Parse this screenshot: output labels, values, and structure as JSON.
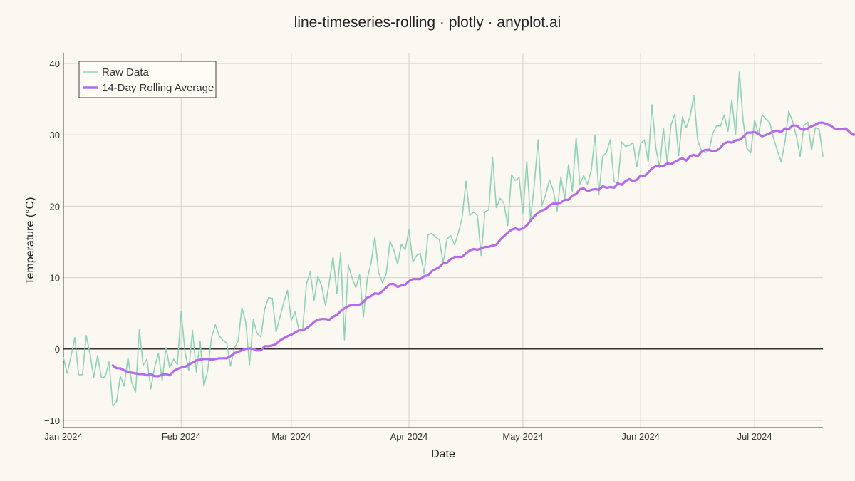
{
  "chart_data": {
    "type": "line",
    "title": "line-timeseries-rolling · plotly · anyplot.ai",
    "xlabel": "Date",
    "ylabel": "Temperature (°C)",
    "x_range": [
      "2024-01-01",
      "2024-07-19"
    ],
    "ylim": [
      -11,
      41.5
    ],
    "y_ticks": [
      -10,
      0,
      10,
      20,
      30,
      40
    ],
    "y_tick_labels": [
      "−10",
      "0",
      "10",
      "20",
      "30",
      "40"
    ],
    "x_ticks": [
      "2024-01-01",
      "2024-02-01",
      "2024-03-01",
      "2024-04-01",
      "2024-05-01",
      "2024-06-01",
      "2024-07-01"
    ],
    "x_tick_labels": [
      "Jan 2024",
      "Feb 2024",
      "Mar 2024",
      "Apr 2024",
      "May 2024",
      "Jun 2024",
      "Jul 2024"
    ],
    "grid": true,
    "zero_line": true,
    "legend_position": "top-left",
    "colors": {
      "background": "#FAF8F1",
      "raw": "#8ED2B5",
      "rolling": "#B46BEA",
      "grid": "#D3D1CB",
      "zero_line": "#333333",
      "axis": "#444444"
    },
    "series": [
      {
        "name": "Raw Data",
        "start_date": "2024-01-01",
        "values": [
          -1.2,
          -3.4,
          -1.0,
          1.6,
          -3.6,
          -3.6,
          1.9,
          -0.7,
          -4.0,
          -0.9,
          -4.0,
          -3.9,
          -1.8,
          -8.0,
          -7.4,
          -3.8,
          -5.2,
          -1.2,
          -4.7,
          -6.0,
          2.7,
          -2.3,
          -1.4,
          -5.6,
          -2.6,
          -0.6,
          -4.4,
          0.2,
          -2.6,
          -1.4,
          -2.2,
          5.3,
          -0.4,
          -3.0,
          2.6,
          -3.2,
          1.1,
          -5.2,
          -3.0,
          1.6,
          3.4,
          1.9,
          1.2,
          0.9,
          -2.4,
          0.1,
          1.1,
          5.8,
          3.8,
          -2.2,
          4.1,
          2.2,
          1.7,
          5.6,
          7.2,
          7.1,
          2.4,
          4.4,
          6.5,
          8.2,
          4.0,
          5.2,
          2.7,
          2.7,
          9.1,
          10.8,
          6.8,
          10.2,
          8.8,
          6.1,
          9.3,
          12.9,
          7.8,
          13.5,
          1.3,
          11.8,
          10.0,
          8.6,
          10.4,
          4.5,
          9.8,
          12.0,
          15.7,
          10.7,
          9.3,
          10.5,
          15.1,
          13.9,
          11.9,
          14.7,
          13.9,
          16.7,
          12.2,
          13.1,
          13.4,
          10.5,
          16.0,
          16.2,
          15.7,
          15.3,
          12.0,
          15.4,
          15.9,
          14.6,
          16.3,
          18.4,
          23.5,
          18.7,
          19.2,
          18.7,
          13.1,
          19.2,
          19.5,
          26.9,
          19.8,
          21.1,
          20.4,
          17.3,
          24.4,
          23.6,
          24.0,
          19.0,
          26.3,
          18.1,
          23.1,
          29.3,
          20.1,
          21.6,
          23.7,
          22.2,
          19.3,
          24.1,
          21.0,
          25.8,
          22.1,
          29.6,
          23.1,
          24.3,
          23.1,
          25.0,
          30.0,
          21.7,
          27.0,
          27.5,
          29.3,
          23.4,
          23.3,
          29.0,
          28.4,
          28.5,
          28.9,
          25.5,
          28.8,
          29.3,
          26.2,
          34.2,
          28.2,
          25.4,
          30.9,
          26.2,
          31.4,
          32.9,
          27.1,
          32.5,
          31.0,
          32.5,
          35.5,
          29.3,
          27.8,
          27.5,
          27.8,
          30.2,
          31.3,
          31.2,
          32.8,
          30.5,
          34.9,
          30.0,
          38.8,
          31.9,
          28.1,
          27.5,
          32.1,
          30.0,
          32.8,
          32.2,
          31.7,
          29.5,
          27.8,
          26.2,
          29.0,
          33.3,
          31.9,
          29.8,
          27.0,
          31.3,
          31.8,
          27.9,
          31.0,
          30.8,
          27.0
        ]
      },
      {
        "name": "14-Day Rolling Average",
        "start_date": "2024-01-14",
        "values": [
          -2.3,
          -2.7,
          -2.7,
          -3.0,
          -3.2,
          -3.3,
          -3.4,
          -3.5,
          -3.5,
          -3.7,
          -3.5,
          -3.8,
          -3.8,
          -3.6,
          -3.5,
          -3.7,
          -3.1,
          -2.8,
          -2.6,
          -2.5,
          -2.2,
          -1.9,
          -1.6,
          -1.5,
          -1.4,
          -1.4,
          -1.5,
          -1.4,
          -1.3,
          -1.3,
          -1.3,
          -1.0,
          -0.6,
          -0.4,
          -0.2,
          0.0,
          0.1,
          0.0,
          -0.2,
          -0.2,
          0.4,
          0.4,
          0.5,
          0.7,
          1.2,
          1.5,
          1.8,
          2.0,
          2.3,
          2.6,
          2.6,
          2.9,
          3.3,
          3.8,
          4.1,
          4.2,
          4.2,
          4.1,
          4.5,
          4.8,
          5.3,
          5.7,
          6.0,
          6.2,
          6.2,
          6.2,
          6.6,
          7.2,
          7.4,
          7.8,
          7.7,
          8.1,
          8.6,
          9.1,
          9.1,
          8.7,
          8.9,
          9.0,
          9.5,
          9.8,
          9.8,
          9.8,
          10.2,
          10.3,
          10.9,
          11.2,
          11.5,
          12.0,
          12.1,
          12.6,
          12.9,
          12.9,
          12.9,
          13.4,
          13.8,
          14.0,
          13.9,
          14.1,
          14.3,
          14.3,
          14.5,
          14.6,
          15.3,
          15.8,
          16.3,
          16.7,
          16.9,
          16.7,
          16.9,
          17.3,
          18.0,
          18.6,
          19.1,
          19.4,
          19.6,
          20.1,
          20.4,
          20.4,
          20.5,
          20.9,
          20.9,
          21.5,
          21.7,
          22.4,
          22.5,
          22.1,
          22.3,
          22.4,
          22.3,
          22.8,
          22.6,
          22.7,
          22.6,
          23.2,
          23.0,
          23.5,
          23.8,
          23.5,
          23.7,
          24.3,
          24.2,
          24.7,
          25.3,
          25.6,
          25.7,
          25.6,
          26.0,
          25.9,
          26.2,
          26.5,
          26.7,
          26.4,
          27.0,
          27.2,
          27.0,
          27.6,
          27.9,
          27.9,
          27.7,
          27.8,
          28.2,
          28.8,
          29.0,
          28.9,
          29.2,
          29.3,
          29.7,
          30.3,
          30.3,
          30.4,
          30.1,
          29.8,
          30.0,
          30.2,
          30.5,
          30.6,
          30.4,
          30.9,
          30.8,
          31.3,
          31.3,
          30.9,
          30.7,
          30.9,
          31.2,
          31.4,
          31.7,
          31.7,
          31.5,
          31.3,
          30.9,
          30.8,
          30.8,
          30.9,
          30.4,
          30.0,
          30.1,
          30.2,
          30.2,
          30.1,
          30.1,
          29.8
        ]
      }
    ]
  }
}
